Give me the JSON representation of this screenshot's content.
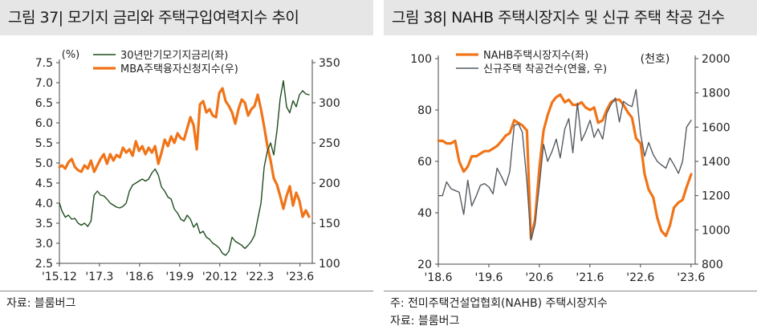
{
  "panels": [
    {
      "title": "그림 37| 모기지 금리와 주택구입여력지수 추이",
      "notes": [
        "자료: 블룸버그"
      ],
      "chart_data": {
        "type": "line",
        "x_ticks": [
          "'15.12",
          "'17.3",
          "'18.6",
          "'19.9",
          "'20.12",
          "'22.3",
          "'23.6"
        ],
        "x_tick_pos": [
          2015.917,
          2017.167,
          2018.417,
          2019.667,
          2020.917,
          2022.167,
          2023.417
        ],
        "x_range": [
          2015.917,
          2023.8
        ],
        "left_axis": {
          "unit": "(%)",
          "range": [
            2.5,
            7.5
          ],
          "ticks": [
            2.5,
            3.0,
            3.5,
            4.0,
            4.5,
            5.0,
            5.5,
            6.0,
            6.5,
            7.0,
            7.5
          ],
          "decimals": 1
        },
        "right_axis": {
          "unit": "",
          "range": [
            100,
            350
          ],
          "ticks": [
            100,
            150,
            200,
            250,
            300,
            350
          ],
          "decimals": 0
        },
        "legend_position": "top-left",
        "series": [
          {
            "name": "30년만기모기지금리(좌)",
            "axis": "left",
            "color": "#1f4d1f",
            "width": 1.4,
            "x": [
              2015.92,
              2016.0,
              2016.1,
              2016.2,
              2016.3,
              2016.4,
              2016.5,
              2016.6,
              2016.7,
              2016.8,
              2016.9,
              2017.0,
              2017.1,
              2017.2,
              2017.3,
              2017.4,
              2017.5,
              2017.6,
              2017.7,
              2017.8,
              2017.9,
              2018.0,
              2018.1,
              2018.2,
              2018.3,
              2018.4,
              2018.5,
              2018.6,
              2018.7,
              2018.8,
              2018.9,
              2019.0,
              2019.1,
              2019.2,
              2019.3,
              2019.4,
              2019.5,
              2019.6,
              2019.7,
              2019.8,
              2019.9,
              2020.0,
              2020.1,
              2020.2,
              2020.3,
              2020.4,
              2020.5,
              2020.6,
              2020.7,
              2020.8,
              2020.9,
              2021.0,
              2021.1,
              2021.2,
              2021.3,
              2021.4,
              2021.5,
              2021.6,
              2021.7,
              2021.8,
              2021.9,
              2022.0,
              2022.1,
              2022.2,
              2022.3,
              2022.4,
              2022.5,
              2022.6,
              2022.7,
              2022.8,
              2022.9,
              2023.0,
              2023.1,
              2023.2,
              2023.3,
              2023.4,
              2023.5,
              2023.6,
              2023.7
            ],
            "y": [
              4.0,
              3.8,
              3.65,
              3.7,
              3.6,
              3.62,
              3.5,
              3.45,
              3.5,
              3.42,
              3.55,
              4.2,
              4.3,
              4.2,
              4.18,
              4.1,
              4.0,
              3.95,
              3.9,
              3.88,
              3.92,
              4.0,
              4.3,
              4.45,
              4.5,
              4.55,
              4.6,
              4.55,
              4.6,
              4.75,
              4.85,
              4.7,
              4.4,
              4.3,
              4.15,
              4.1,
              3.85,
              3.75,
              3.6,
              3.55,
              3.7,
              3.6,
              3.4,
              3.5,
              3.25,
              3.3,
              3.15,
              3.1,
              3.0,
              2.95,
              2.88,
              2.75,
              2.7,
              2.8,
              3.15,
              3.05,
              3.0,
              2.95,
              2.87,
              2.95,
              3.05,
              3.2,
              3.6,
              4.0,
              4.9,
              5.3,
              5.5,
              5.2,
              5.8,
              6.6,
              7.05,
              6.4,
              6.25,
              6.55,
              6.4,
              6.7,
              6.8,
              6.72,
              6.7
            ]
          },
          {
            "name": "MBA주택융자신청지수(우)",
            "axis": "right",
            "color": "#f07418",
            "width": 3.2,
            "x": [
              2015.92,
              2016.0,
              2016.1,
              2016.2,
              2016.3,
              2016.4,
              2016.5,
              2016.6,
              2016.7,
              2016.8,
              2016.9,
              2017.0,
              2017.1,
              2017.2,
              2017.3,
              2017.4,
              2017.5,
              2017.6,
              2017.7,
              2017.8,
              2017.9,
              2018.0,
              2018.1,
              2018.2,
              2018.3,
              2018.4,
              2018.5,
              2018.6,
              2018.7,
              2018.8,
              2018.9,
              2019.0,
              2019.1,
              2019.2,
              2019.3,
              2019.4,
              2019.5,
              2019.6,
              2019.7,
              2019.8,
              2019.9,
              2020.0,
              2020.1,
              2020.2,
              2020.3,
              2020.4,
              2020.5,
              2020.6,
              2020.7,
              2020.8,
              2020.9,
              2021.0,
              2021.1,
              2021.2,
              2021.3,
              2021.4,
              2021.5,
              2021.6,
              2021.7,
              2021.8,
              2021.9,
              2022.0,
              2022.1,
              2022.2,
              2022.3,
              2022.4,
              2022.5,
              2022.6,
              2022.7,
              2022.8,
              2022.9,
              2023.0,
              2023.1,
              2023.2,
              2023.3,
              2023.4,
              2023.5,
              2023.6,
              2023.7
            ],
            "y": [
              220,
              222,
              218,
              226,
              230,
              220,
              216,
              214,
              222,
              218,
              228,
              214,
              222,
              230,
              236,
              224,
              236,
              228,
              235,
              232,
              244,
              238,
              242,
              234,
              252,
              240,
              246,
              236,
              244,
              238,
              246,
              224,
              238,
              254,
              246,
              258,
              250,
              262,
              256,
              254,
              268,
              282,
              272,
              242,
              298,
              302,
              288,
              292,
              284,
              282,
              312,
              318,
              302,
              296,
              288,
              274,
              292,
              304,
              300,
              284,
              292,
              296,
              310,
              292,
              270,
              246,
              228,
              206,
              198,
              184,
              168,
              184,
              196,
              172,
              188,
              178,
              158,
              166,
              158
            ]
          }
        ]
      }
    },
    {
      "title": "그림 38| NAHB 주택시장지수 및 신규 주택 착공 건수",
      "notes": [
        "주: 전미주택건설업협회(NAHB) 주택시장지수",
        "자료: 블룸버그"
      ],
      "chart_data": {
        "type": "line",
        "x_ticks": [
          "'18.6",
          "'19.6",
          "'20.6",
          "'21.6",
          "'22.6",
          "'23.6"
        ],
        "x_tick_pos": [
          2018.417,
          2019.417,
          2020.417,
          2021.417,
          2022.417,
          2023.417
        ],
        "x_range": [
          2018.417,
          2023.5
        ],
        "left_axis": {
          "unit": "",
          "range": [
            20,
            100
          ],
          "ticks": [
            20,
            40,
            60,
            80,
            100
          ],
          "decimals": 0
        },
        "right_axis": {
          "unit": "(천호)",
          "range": [
            800,
            2000
          ],
          "ticks": [
            800,
            1000,
            1200,
            1400,
            1600,
            1800,
            2000
          ],
          "decimals": 0
        },
        "legend_position": "top-left",
        "series": [
          {
            "name": "NAHB주택시장지수(좌)",
            "axis": "left",
            "color": "#f07418",
            "width": 3.2,
            "x": [
              2018.42,
              2018.5,
              2018.58,
              2018.67,
              2018.75,
              2018.83,
              2018.92,
              2019.0,
              2019.08,
              2019.17,
              2019.25,
              2019.33,
              2019.42,
              2019.5,
              2019.58,
              2019.67,
              2019.75,
              2019.83,
              2019.92,
              2020.0,
              2020.08,
              2020.17,
              2020.25,
              2020.33,
              2020.42,
              2020.5,
              2020.58,
              2020.67,
              2020.75,
              2020.83,
              2020.92,
              2021.0,
              2021.08,
              2021.17,
              2021.25,
              2021.33,
              2021.42,
              2021.5,
              2021.58,
              2021.67,
              2021.75,
              2021.83,
              2021.92,
              2022.0,
              2022.08,
              2022.17,
              2022.25,
              2022.33,
              2022.42,
              2022.5,
              2022.58,
              2022.67,
              2022.75,
              2022.83,
              2022.92,
              2023.0,
              2023.08,
              2023.17,
              2023.25,
              2023.33,
              2023.42
            ],
            "y": [
              68,
              68,
              67,
              67,
              68,
              60,
              56,
              58,
              62,
              62,
              63,
              64,
              64,
              65,
              66,
              68,
              70,
              71,
              76,
              75,
              74,
              72,
              30,
              37,
              58,
              72,
              78,
              83,
              85,
              86,
              83,
              84,
              82,
              82,
              83,
              81,
              80,
              81,
              75,
              76,
              80,
              83,
              84,
              84,
              82,
              79,
              77,
              69,
              67,
              55,
              49,
              46,
              38,
              33,
              31,
              35,
              42,
              44,
              45,
              50,
              55
            ]
          },
          {
            "name": "신규주택 착공건수(연율, 우)",
            "axis": "right",
            "color": "#555b62",
            "width": 1.4,
            "x": [
              2018.42,
              2018.5,
              2018.58,
              2018.67,
              2018.75,
              2018.83,
              2018.92,
              2019.0,
              2019.08,
              2019.17,
              2019.25,
              2019.33,
              2019.42,
              2019.5,
              2019.58,
              2019.67,
              2019.75,
              2019.83,
              2019.92,
              2020.0,
              2020.08,
              2020.17,
              2020.25,
              2020.33,
              2020.42,
              2020.5,
              2020.58,
              2020.67,
              2020.75,
              2020.83,
              2020.92,
              2021.0,
              2021.08,
              2021.17,
              2021.25,
              2021.33,
              2021.42,
              2021.5,
              2021.58,
              2021.67,
              2021.75,
              2021.83,
              2021.92,
              2022.0,
              2022.08,
              2022.17,
              2022.25,
              2022.33,
              2022.42,
              2022.5,
              2022.58,
              2022.67,
              2022.75,
              2022.83,
              2022.92,
              2023.0,
              2023.08,
              2023.17,
              2023.25,
              2023.33,
              2023.42
            ],
            "y": [
              1200,
              1200,
              1280,
              1240,
              1230,
              1220,
              1090,
              1290,
              1140,
              1200,
              1260,
              1270,
              1250,
              1210,
              1360,
              1310,
              1260,
              1340,
              1610,
              1620,
              1570,
              1280,
              940,
              1030,
              1270,
              1500,
              1400,
              1460,
              1530,
              1420,
              1590,
              1650,
              1450,
              1740,
              1520,
              1570,
              1640,
              1540,
              1590,
              1530,
              1680,
              1730,
              1770,
              1630,
              1750,
              1730,
              1720,
              1820,
              1560,
              1430,
              1510,
              1440,
              1400,
              1380,
              1360,
              1420,
              1380,
              1330,
              1400,
              1600,
              1640
            ]
          }
        ]
      }
    }
  ]
}
